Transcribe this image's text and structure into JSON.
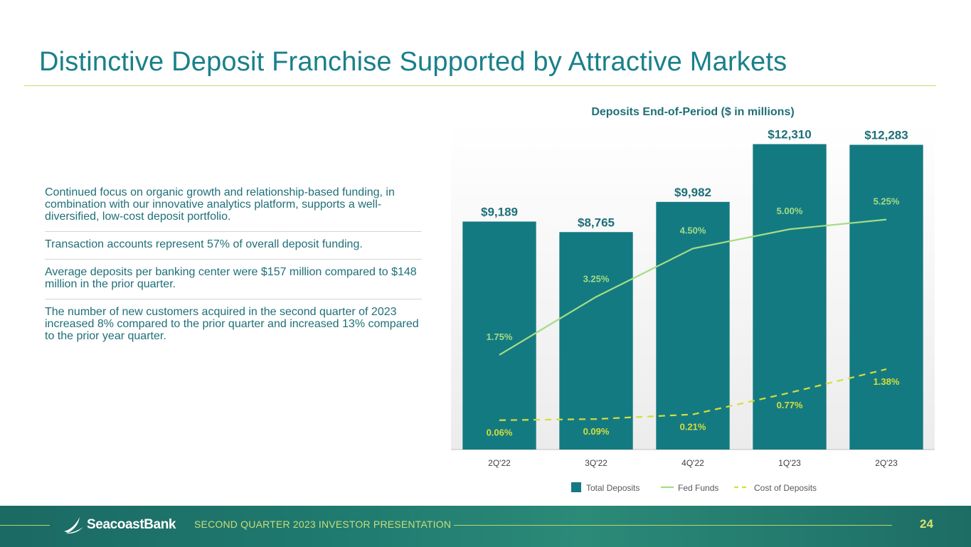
{
  "slide": {
    "title": "Distinctive Deposit Franchise Supported by Attractive Markets",
    "bullets": [
      "Continued focus on organic growth and relationship-based funding, in combination with our innovative analytics platform, supports a well-diversified, low-cost deposit portfolio.",
      "Transaction accounts represent 57% of overall deposit funding.",
      "Average deposits per banking center were $157 million compared to $148 million in the prior quarter.",
      "The number of new customers acquired in the second quarter of 2023 increased 8% compared to the prior quarter and increased 13% compared to the prior year quarter."
    ]
  },
  "footer": {
    "brand": "SeacoastBank",
    "presentation": "SECOND QUARTER 2023 INVESTOR PRESENTATION",
    "page": "24"
  },
  "colors": {
    "accent": "#1a8089",
    "bar": "#147a82",
    "fed_funds": "#a3dd84",
    "cost_of_deposits": "#d5df3a"
  },
  "chart_data": {
    "type": "bar",
    "title": "Deposits End-of-Period ($ in millions)",
    "categories": [
      "2Q'22",
      "3Q'22",
      "4Q'22",
      "1Q'23",
      "2Q'23"
    ],
    "series": [
      {
        "name": "Total Deposits",
        "kind": "bar",
        "values": [
          9189,
          8765,
          9982,
          12310,
          12283
        ],
        "labels": [
          "$9,189",
          "$8,765",
          "$9,982",
          "$12,310",
          "$12,283"
        ]
      },
      {
        "name": "Fed Funds",
        "kind": "line",
        "style": "solid",
        "values": [
          1.75,
          3.25,
          4.5,
          5.0,
          5.25
        ],
        "labels": [
          "1.75%",
          "3.25%",
          "4.50%",
          "5.00%",
          "5.25%"
        ]
      },
      {
        "name": "Cost of Deposits",
        "kind": "line",
        "style": "dashed",
        "values": [
          0.06,
          0.09,
          0.21,
          0.77,
          1.38
        ],
        "labels": [
          "0.06%",
          "0.09%",
          "0.21%",
          "0.77%",
          "1.38%"
        ]
      }
    ],
    "ylim_bars": [
      0,
      12500
    ],
    "ylim_rates": [
      0,
      8.5
    ],
    "legend": "bottom"
  }
}
